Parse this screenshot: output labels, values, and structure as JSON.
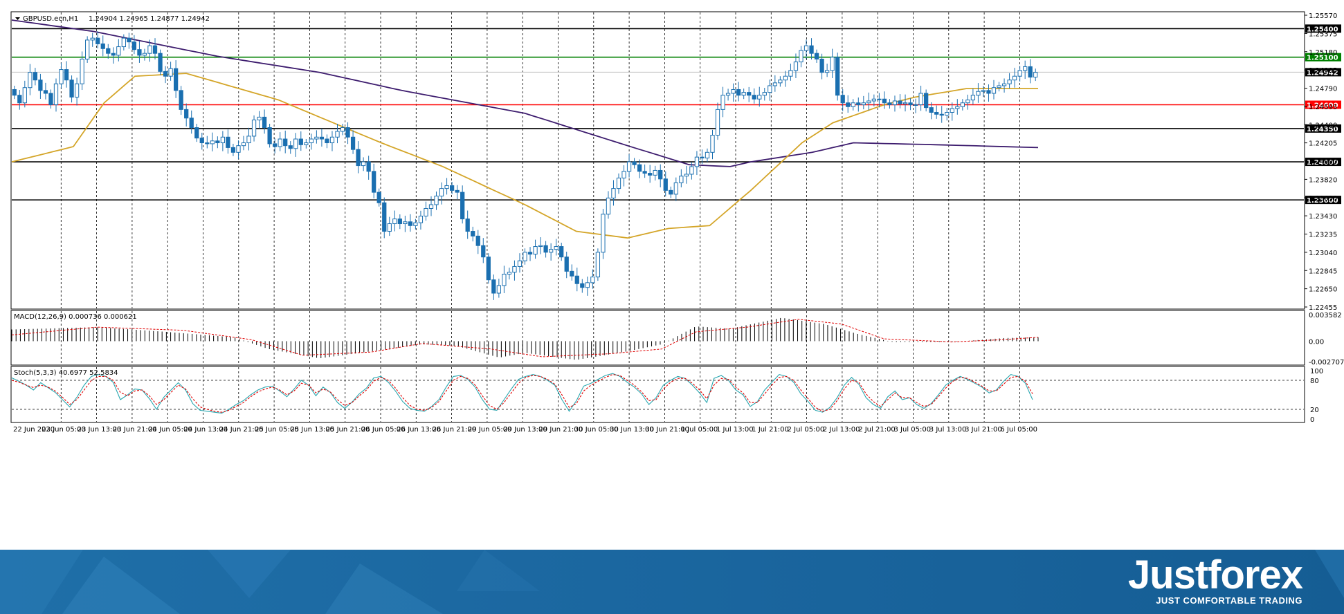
{
  "chart_data": {
    "type": "candlestick",
    "title": "GBPUSD.ecn,H1",
    "ohlc_label": "1.24904 1.24965 1.24877 1.24942",
    "ylim": [
      1.2246,
      1.2557
    ],
    "price_ticks": [
      "1.25570",
      "1.25375",
      "1.25180",
      "1.24985",
      "1.24790",
      "1.24595",
      "1.24400",
      "1.24205",
      "1.24000",
      "1.23820",
      "1.23630",
      "1.23430",
      "1.23235",
      "1.23040",
      "1.22845",
      "1.22650",
      "1.22455"
    ],
    "x_ticks": [
      "22 Jun 2020",
      "23 Jun 05:00",
      "23 Jun 13:00",
      "23 Jun 21:00",
      "24 Jun 05:00",
      "24 Jun 13:00",
      "24 Jun 21:00",
      "25 Jun 05:00",
      "25 Jun 13:00",
      "25 Jun 21:00",
      "26 Jun 05:00",
      "26 Jun 13:00",
      "26 Jun 21:00",
      "29 Jun 05:00",
      "29 Jun 13:00",
      "29 Jun 21:00",
      "30 Jun 05:00",
      "30 Jun 13:00",
      "30 Jun 21:00",
      "1 Jul 05:00",
      "1 Jul 13:00",
      "1 Jul 21:00",
      "2 Jul 05:00",
      "2 Jul 13:00",
      "2 Jul 21:00",
      "3 Jul 05:00",
      "3 Jul 13:00",
      "3 Jul 21:00",
      "6 Jul 05:00"
    ],
    "levels": [
      {
        "price": 1.254,
        "label": "1.25400",
        "color": "#000000"
      },
      {
        "price": 1.251,
        "label": "1.25100",
        "color": "#008000"
      },
      {
        "price": 1.246,
        "label": "1.24600",
        "color": "#ff0000"
      },
      {
        "price": 1.2435,
        "label": "1.24350",
        "color": "#000000"
      },
      {
        "price": 1.24,
        "label": "1.24000",
        "color": "#000000"
      },
      {
        "price": 1.236,
        "label": "1.23600",
        "color": "#000000"
      }
    ],
    "current_price": {
      "price": 1.24942,
      "label": "1.24942"
    },
    "close_series": [
      1.247,
      1.2462,
      1.2478,
      1.2494,
      1.2486,
      1.2475,
      1.2472,
      1.246,
      1.2482,
      1.2497,
      1.2486,
      1.2468,
      1.2482,
      1.2508,
      1.2528,
      1.253,
      1.2524,
      1.2519,
      1.2514,
      1.2512,
      1.2521,
      1.253,
      1.2526,
      1.2518,
      1.2512,
      1.2514,
      1.2522,
      1.2514,
      1.2495,
      1.249,
      1.2498,
      1.2475,
      1.2455,
      1.2446,
      1.2436,
      1.2425,
      1.242,
      1.2419,
      1.2422,
      1.242,
      1.2426,
      1.2415,
      1.241,
      1.2417,
      1.242,
      1.2427,
      1.2444,
      1.2447,
      1.2436,
      1.2419,
      1.2416,
      1.2424,
      1.2417,
      1.2414,
      1.2424,
      1.2418,
      1.242,
      1.2424,
      1.2426,
      1.2424,
      1.242,
      1.2426,
      1.2432,
      1.2436,
      1.2426,
      1.2413,
      1.2396,
      1.24,
      1.239,
      1.2368,
      1.2357,
      1.2327,
      1.2335,
      1.234,
      1.2335,
      1.2337,
      1.2333,
      1.2336,
      1.2343,
      1.2351,
      1.2355,
      1.2364,
      1.2372,
      1.2375,
      1.237,
      1.2368,
      1.234,
      1.2327,
      1.2322,
      1.2312,
      1.23,
      1.2276,
      1.2262,
      1.227,
      1.2282,
      1.2284,
      1.229,
      1.2296,
      1.2305,
      1.2303,
      1.2311,
      1.2312,
      1.2305,
      1.2308,
      1.2311,
      1.23,
      1.2285,
      1.228,
      1.2272,
      1.2268,
      1.2273,
      1.2279,
      1.2305,
      1.2345,
      1.2362,
      1.2372,
      1.2383,
      1.239,
      1.24,
      1.2397,
      1.239,
      1.2388,
      1.2386,
      1.2391,
      1.2382,
      1.237,
      1.2366,
      1.2378,
      1.2385,
      1.2387,
      1.2395,
      1.2405,
      1.2404,
      1.241,
      1.2428,
      1.2455,
      1.247,
      1.2472,
      1.2476,
      1.247,
      1.2473,
      1.247,
      1.2466,
      1.247,
      1.2473,
      1.248,
      1.2483,
      1.2486,
      1.249,
      1.2496,
      1.2505,
      1.2517,
      1.2522,
      1.2514,
      1.2508,
      1.2494,
      1.2496,
      1.251,
      1.247,
      1.2462,
      1.2458,
      1.2462,
      1.246,
      1.2462,
      1.2464,
      1.2466,
      1.2466,
      1.2462,
      1.246,
      1.2464,
      1.2461,
      1.2462,
      1.246,
      1.246,
      1.2472,
      1.2457,
      1.2452,
      1.245,
      1.2449,
      1.2452,
      1.2456,
      1.2458,
      1.2462,
      1.2465,
      1.247,
      1.2474,
      1.2475,
      1.2472,
      1.2478,
      1.248,
      1.2482,
      1.2486,
      1.249,
      1.2496,
      1.25,
      1.2489,
      1.2494
    ],
    "ma_slow": [
      [
        0,
        1.2549
      ],
      [
        0.08,
        1.2537
      ],
      [
        0.2,
        1.2511
      ],
      [
        0.3,
        1.2494
      ],
      [
        0.38,
        1.2475
      ],
      [
        0.5,
        1.2451
      ],
      [
        0.6,
        1.2417
      ],
      [
        0.66,
        1.2397
      ],
      [
        0.7,
        1.2395
      ],
      [
        0.72,
        1.24
      ],
      [
        0.78,
        1.241
      ],
      [
        0.82,
        1.242
      ],
      [
        0.9,
        1.2418
      ],
      [
        1.0,
        1.2415
      ]
    ],
    "ma_fast": [
      [
        0,
        1.24
      ],
      [
        0.06,
        1.2416
      ],
      [
        0.09,
        1.2462
      ],
      [
        0.12,
        1.249
      ],
      [
        0.17,
        1.2493
      ],
      [
        0.26,
        1.2465
      ],
      [
        0.36,
        1.242
      ],
      [
        0.42,
        1.2395
      ],
      [
        0.5,
        1.2355
      ],
      [
        0.55,
        1.2327
      ],
      [
        0.6,
        1.232
      ],
      [
        0.64,
        1.233
      ],
      [
        0.68,
        1.2333
      ],
      [
        0.72,
        1.237
      ],
      [
        0.77,
        1.242
      ],
      [
        0.8,
        1.2441
      ],
      [
        0.85,
        1.246
      ],
      [
        0.88,
        1.2468
      ],
      [
        0.93,
        1.2477
      ],
      [
        1.0,
        1.2477
      ]
    ],
    "macd": {
      "label": "MACD(12,26,9) 0.000736 0.000621",
      "ylim": [
        -0.002707,
        0.003582
      ],
      "ticks": [
        "0.003582",
        "0.00",
        "-0.002707"
      ],
      "hist_segments": [
        [
          0,
          0.0015
        ],
        [
          0.1,
          0.0018
        ],
        [
          0.18,
          0.0012
        ],
        [
          0.26,
          0.0005
        ],
        [
          0.3,
          -0.001
        ],
        [
          0.36,
          -0.0022
        ],
        [
          0.42,
          -0.0013
        ],
        [
          0.48,
          -0.0004
        ],
        [
          0.52,
          -0.0006
        ],
        [
          0.57,
          -0.0021
        ],
        [
          0.6,
          -0.0015
        ],
        [
          0.66,
          -0.0024
        ],
        [
          0.72,
          -0.0013
        ],
        [
          0.76,
          -0.0004
        ],
        [
          0.8,
          0.0019
        ],
        [
          0.84,
          0.0016
        ],
        [
          0.9,
          0.003
        ],
        [
          0.95,
          0.0022
        ],
        [
          0.99,
          0.0009
        ],
        [
          1.03,
          -0.0001
        ],
        [
          1.1,
          -0.0001
        ],
        [
          1.16,
          0.0004
        ],
        [
          1.2,
          0.0005
        ]
      ],
      "signal_segments": [
        [
          0,
          0.0008
        ],
        [
          0.1,
          0.0018
        ],
        [
          0.2,
          0.0014
        ],
        [
          0.28,
          0.0002
        ],
        [
          0.34,
          -0.0018
        ],
        [
          0.42,
          -0.0014
        ],
        [
          0.48,
          -0.0003
        ],
        [
          0.56,
          -0.001
        ],
        [
          0.62,
          -0.002
        ],
        [
          0.7,
          -0.0016
        ],
        [
          0.76,
          -0.001
        ],
        [
          0.8,
          0.0012
        ],
        [
          0.86,
          0.0018
        ],
        [
          0.92,
          0.0028
        ],
        [
          0.97,
          0.0022
        ],
        [
          1.02,
          0.0003
        ],
        [
          1.1,
          -0.0001
        ],
        [
          1.16,
          0.0002
        ],
        [
          1.2,
          0.0005
        ]
      ]
    },
    "stoch": {
      "label": "Stoch(5,3,3) 40.6977 52.5834",
      "ylim": [
        0,
        100
      ],
      "ticks": [
        "100",
        "80",
        "20",
        "0"
      ],
      "levels": [
        80,
        20
      ],
      "main": [
        85,
        78,
        70,
        60,
        75,
        65,
        55,
        40,
        25,
        45,
        70,
        88,
        92,
        88,
        76,
        40,
        50,
        62,
        60,
        42,
        20,
        45,
        60,
        75,
        60,
        32,
        18,
        16,
        14,
        12,
        20,
        30,
        38,
        50,
        60,
        66,
        68,
        58,
        46,
        62,
        80,
        70,
        48,
        66,
        55,
        34,
        22,
        35,
        52,
        64,
        85,
        88,
        76,
        58,
        36,
        22,
        18,
        16,
        26,
        40,
        66,
        88,
        90,
        82,
        66,
        40,
        20,
        18,
        40,
        62,
        82,
        88,
        92,
        88,
        80,
        70,
        40,
        16,
        38,
        68,
        74,
        82,
        90,
        94,
        88,
        76,
        66,
        52,
        30,
        44,
        70,
        80,
        88,
        84,
        70,
        54,
        34,
        84,
        90,
        80,
        60,
        50,
        26,
        36,
        60,
        76,
        92,
        88,
        76,
        52,
        36,
        18,
        14,
        24,
        44,
        70,
        86,
        72,
        44,
        30,
        22,
        46,
        58,
        40,
        44,
        30,
        22,
        32,
        50,
        70,
        80,
        88,
        82,
        74,
        66,
        54,
        60,
        78,
        92,
        88,
        74,
        40
      ],
      "signal": [
        80,
        76,
        70,
        65,
        70,
        66,
        58,
        45,
        30,
        40,
        60,
        80,
        88,
        88,
        80,
        55,
        48,
        58,
        60,
        48,
        30,
        40,
        55,
        70,
        62,
        42,
        25,
        20,
        16,
        14,
        18,
        26,
        34,
        46,
        56,
        62,
        66,
        60,
        50,
        58,
        74,
        70,
        54,
        62,
        56,
        40,
        28,
        34,
        48,
        60,
        78,
        86,
        80,
        64,
        44,
        28,
        20,
        18,
        24,
        36,
        58,
        80,
        88,
        84,
        70,
        48,
        28,
        20,
        34,
        54,
        74,
        86,
        90,
        88,
        82,
        72,
        50,
        24,
        32,
        58,
        70,
        78,
        86,
        92,
        90,
        80,
        70,
        56,
        38,
        40,
        62,
        76,
        84,
        84,
        74,
        60,
        42,
        70,
        84,
        82,
        66,
        54,
        34,
        34,
        52,
        70,
        86,
        88,
        80,
        60,
        42,
        24,
        16,
        20,
        38,
        62,
        80,
        76,
        52,
        36,
        26,
        40,
        54,
        44,
        44,
        34,
        26,
        30,
        46,
        64,
        78,
        86,
        84,
        76,
        68,
        58,
        58,
        72,
        86,
        88,
        78,
        52
      ]
    }
  },
  "logo": {
    "name": "Justforex",
    "tagline": "JUST COMFORTABLE TRADING"
  }
}
